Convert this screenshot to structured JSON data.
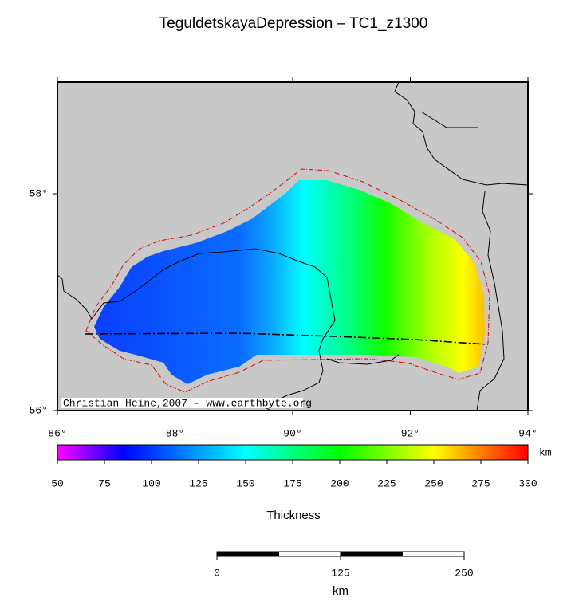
{
  "title": "TeguldetskayaDepression – TC1_z1300",
  "map": {
    "xlim": [
      86,
      94
    ],
    "ylim": [
      56,
      59.03
    ],
    "xticks": [
      {
        "value": 86,
        "label": "86°"
      },
      {
        "value": 88,
        "label": "88°"
      },
      {
        "value": 90,
        "label": "90°"
      },
      {
        "value": 92,
        "label": "92°"
      },
      {
        "value": 94,
        "label": "94°"
      }
    ],
    "yticks": [
      {
        "value": 56,
        "label": "56°"
      },
      {
        "value": 58,
        "label": "58°"
      }
    ],
    "credit": "Christian Heine,2007 - www.earthbyte.org"
  },
  "colorbar": {
    "label": "Thickness",
    "unit": "km",
    "lim": [
      50,
      300
    ],
    "ticks": [
      50,
      75,
      100,
      125,
      150,
      175,
      200,
      225,
      250,
      275,
      300
    ]
  },
  "scale_bar": {
    "lim": [
      0,
      250
    ],
    "ticks": [
      0,
      125,
      250
    ],
    "unit": "km"
  }
}
